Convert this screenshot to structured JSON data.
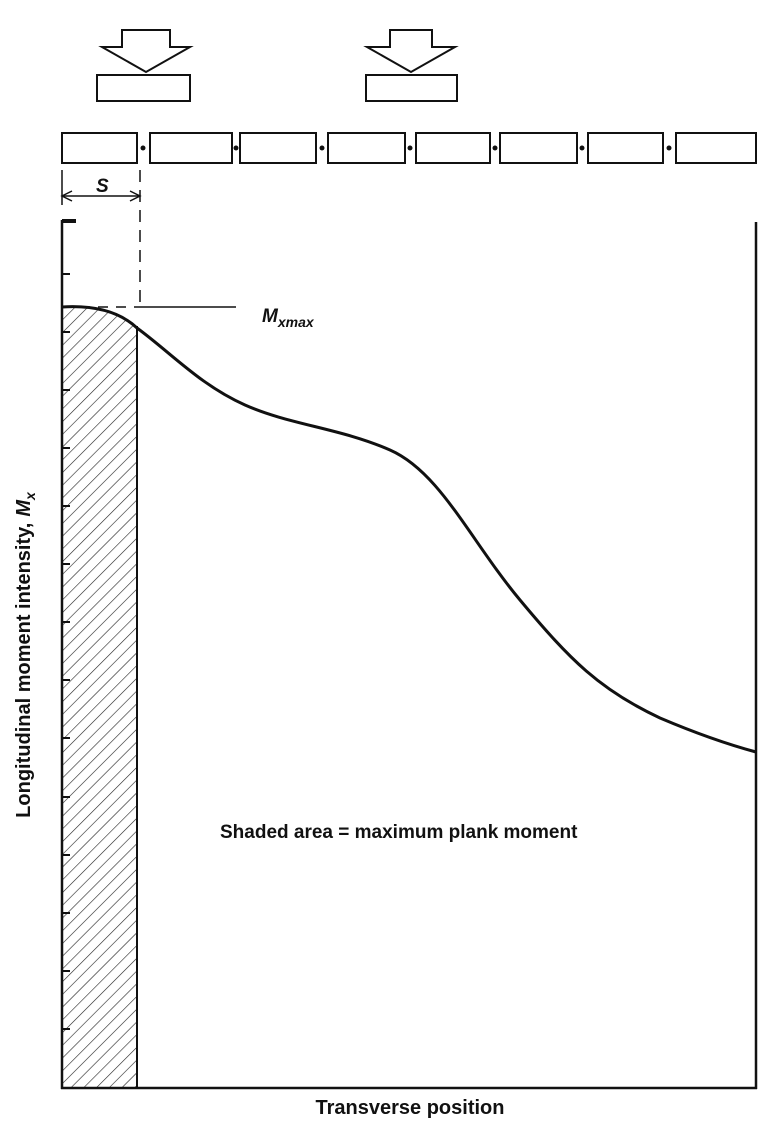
{
  "labels": {
    "spacing": "S",
    "moment_max": {
      "symbol": "M",
      "subscript": "xmax"
    },
    "note": "Shaded area = maximum plank moment",
    "y_axis": {
      "text": "Longitudinal moment intensity,",
      "symbol": "M",
      "subscript": "x"
    },
    "x_axis": "Transverse position"
  }
}
